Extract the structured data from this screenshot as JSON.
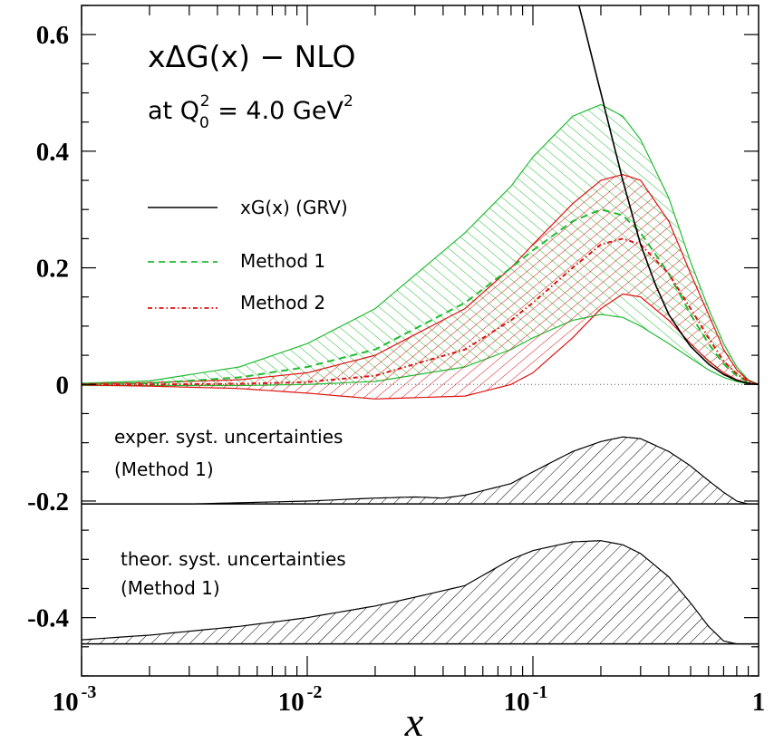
{
  "chart_data": {
    "type": "line",
    "title": "xΔG(x) − NLO",
    "subtitle_prefix": "at Q",
    "subtitle_sub": "0",
    "subtitle_sup": "2",
    "subtitle_suffix": " = 4.0 GeV",
    "subtitle_suffix_sup": "2",
    "xlabel": "x",
    "xscale": "log",
    "xlim": [
      0.001,
      1
    ],
    "ylim": [
      -0.5,
      0.65
    ],
    "x_ticks": [
      {
        "value": 0.001,
        "base": "10",
        "exp": "-3"
      },
      {
        "value": 0.01,
        "base": "10",
        "exp": "-2"
      },
      {
        "value": 0.1,
        "base": "10",
        "exp": "-1"
      },
      {
        "value": 1,
        "base": "1",
        "exp": ""
      }
    ],
    "y_ticks": [
      {
        "value": 0.6,
        "label": "0.6"
      },
      {
        "value": 0.4,
        "label": "0.4"
      },
      {
        "value": 0.2,
        "label": "0.2"
      },
      {
        "value": 0,
        "label": "0"
      },
      {
        "value": -0.2,
        "label": "-0.2"
      },
      {
        "value": -0.4,
        "label": "-0.4"
      }
    ],
    "legend_position": "upper-left",
    "colors": {
      "grv": "#000000",
      "method1": "#22bb33",
      "method2": "#dd1111",
      "syst": "#000000"
    },
    "series": [
      {
        "name": "xG(x) (GRV)",
        "style": "solid",
        "x": [
          0.16,
          0.2,
          0.25,
          0.3,
          0.35,
          0.4,
          0.45,
          0.5,
          0.6,
          0.7,
          0.8,
          0.9,
          1.0
        ],
        "y": [
          0.65,
          0.5,
          0.35,
          0.24,
          0.17,
          0.12,
          0.09,
          0.065,
          0.035,
          0.017,
          0.007,
          0.002,
          0.0
        ]
      },
      {
        "name": "Method 1",
        "style": "dashed",
        "x": [
          0.001,
          0.002,
          0.005,
          0.01,
          0.02,
          0.05,
          0.08,
          0.1,
          0.15,
          0.2,
          0.25,
          0.3,
          0.4,
          0.5,
          0.6,
          0.7,
          0.8,
          0.9,
          1.0
        ],
        "y": [
          0.0,
          0.002,
          0.012,
          0.03,
          0.06,
          0.14,
          0.2,
          0.23,
          0.28,
          0.3,
          0.29,
          0.26,
          0.19,
          0.12,
          0.07,
          0.035,
          0.015,
          0.004,
          0.0
        ],
        "band_upper": [
          0.002,
          0.006,
          0.03,
          0.07,
          0.13,
          0.26,
          0.34,
          0.39,
          0.46,
          0.48,
          0.46,
          0.42,
          0.32,
          0.21,
          0.13,
          0.07,
          0.03,
          0.008,
          0.0
        ],
        "band_lower": [
          -0.002,
          -0.002,
          -0.002,
          0.0,
          0.005,
          0.03,
          0.06,
          0.08,
          0.11,
          0.12,
          0.115,
          0.1,
          0.07,
          0.045,
          0.025,
          0.012,
          0.005,
          0.001,
          0.0
        ]
      },
      {
        "name": "Method 2",
        "style": "dash-dot",
        "x": [
          0.001,
          0.002,
          0.005,
          0.01,
          0.02,
          0.05,
          0.08,
          0.1,
          0.15,
          0.2,
          0.25,
          0.3,
          0.4,
          0.5,
          0.6,
          0.7,
          0.8,
          0.9,
          1.0
        ],
        "y": [
          0.0,
          0.0,
          0.001,
          0.004,
          0.015,
          0.06,
          0.11,
          0.14,
          0.2,
          0.24,
          0.25,
          0.24,
          0.19,
          0.13,
          0.08,
          0.04,
          0.018,
          0.005,
          0.0
        ],
        "band_upper": [
          0.001,
          0.003,
          0.008,
          0.02,
          0.05,
          0.13,
          0.2,
          0.24,
          0.31,
          0.35,
          0.36,
          0.35,
          0.28,
          0.19,
          0.12,
          0.06,
          0.025,
          0.007,
          0.0
        ],
        "band_lower": [
          -0.001,
          -0.003,
          -0.007,
          -0.015,
          -0.025,
          -0.02,
          0.0,
          0.02,
          0.08,
          0.13,
          0.155,
          0.15,
          0.11,
          0.07,
          0.04,
          0.02,
          0.008,
          0.002,
          0.0
        ]
      }
    ],
    "panels": [
      {
        "name": "exper. syst. uncertainties",
        "label_line1": "exper. syst. uncertainties",
        "label_line2": "(Method 1)",
        "baseline": -0.205,
        "x": [
          0.001,
          0.003,
          0.01,
          0.02,
          0.03,
          0.04,
          0.05,
          0.08,
          0.1,
          0.15,
          0.2,
          0.25,
          0.3,
          0.4,
          0.5,
          0.6,
          0.7,
          0.8,
          0.9,
          1.0
        ],
        "upper": [
          -0.205,
          -0.205,
          -0.2,
          -0.195,
          -0.193,
          -0.195,
          -0.19,
          -0.17,
          -0.15,
          -0.115,
          -0.098,
          -0.09,
          -0.093,
          -0.115,
          -0.14,
          -0.165,
          -0.185,
          -0.2,
          -0.205,
          -0.205
        ]
      },
      {
        "name": "theor. syst. uncertainties",
        "label_line1": "theor. syst. uncertainties",
        "label_line2": "(Method 1)",
        "baseline": -0.445,
        "x": [
          0.001,
          0.002,
          0.005,
          0.01,
          0.02,
          0.03,
          0.05,
          0.08,
          0.1,
          0.15,
          0.2,
          0.25,
          0.3,
          0.4,
          0.5,
          0.6,
          0.7,
          0.8,
          0.9,
          1.0
        ],
        "upper": [
          -0.438,
          -0.43,
          -0.415,
          -0.4,
          -0.38,
          -0.365,
          -0.345,
          -0.3,
          -0.285,
          -0.27,
          -0.268,
          -0.275,
          -0.29,
          -0.33,
          -0.375,
          -0.415,
          -0.44,
          -0.445,
          -0.445,
          -0.445
        ]
      }
    ]
  }
}
